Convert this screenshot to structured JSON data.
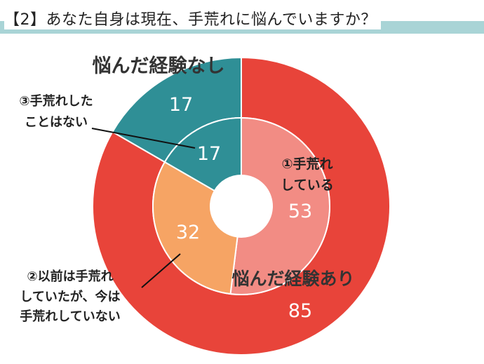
{
  "title": "【2】あなた自身は現在、手荒れに悩んでいますか？",
  "colors": {
    "title_band": "#a9d4d6",
    "outer_yes": "#e8443a",
    "outer_no": "#2f8f96",
    "inner_now": "#f28c84",
    "inner_past": "#f6a464",
    "inner_never": "#2f8f96"
  },
  "chart_data": {
    "type": "pie",
    "variant": "nested-donut",
    "outer": {
      "labels": [
        "悩んだ経験あり",
        "悩んだ経験なし"
      ],
      "values": [
        85,
        17
      ]
    },
    "inner": {
      "labels": [
        "①手荒れしている",
        "②以前は手荒れしていたが、今は手荒れしていない",
        "③手荒れしたことはない"
      ],
      "values": [
        53,
        32,
        17
      ]
    }
  },
  "annotations": {
    "outer_yes_label": "悩んだ経験あり",
    "outer_yes_value": "85",
    "outer_no_label": "悩んだ経験なし",
    "outer_no_value": "17",
    "inner_now_label_line1": "①手荒れ",
    "inner_now_label_line2": "している",
    "inner_now_value": "53",
    "inner_past_value": "32",
    "inner_never_value": "17",
    "callout_past_line1": "②以前は手荒れ",
    "callout_past_line2": "していたが、今は",
    "callout_past_line3": "手荒れしていない",
    "callout_never_line1": "③手荒れした",
    "callout_never_line2": "ことはない"
  }
}
